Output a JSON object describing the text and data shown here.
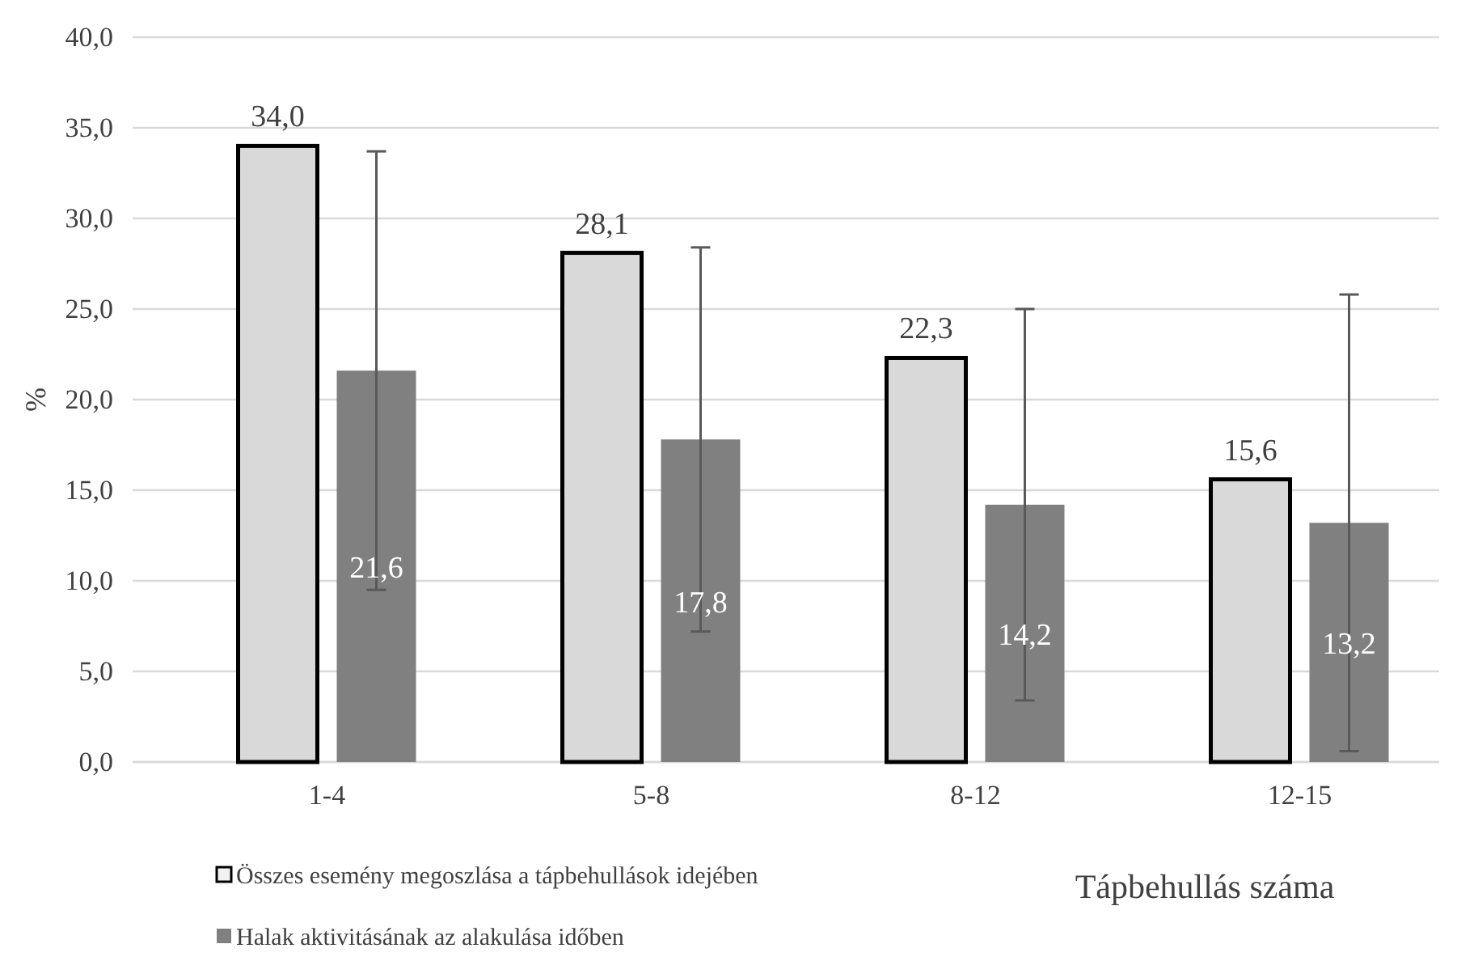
{
  "chart_data": {
    "type": "bar",
    "ylabel": "%",
    "xlabel": "Tápbehullás száma",
    "categories": [
      "1-4",
      "5-8",
      "8-12",
      "12-15"
    ],
    "series": [
      {
        "name": "Összes esemény megoszlása a tápbehullások idejében",
        "color": "#d9d9d9",
        "values": [
          34.0,
          28.1,
          22.3,
          15.6
        ],
        "value_labels": [
          "34,0",
          "28,1",
          "22,3",
          "15,6"
        ]
      },
      {
        "name": "Halak aktivitásának az alakulása időben",
        "color": "#808080",
        "values": [
          21.6,
          17.8,
          14.2,
          13.2
        ],
        "value_labels": [
          "21,6",
          "17,8",
          "14,2",
          "13,2"
        ],
        "errors": [
          12.1,
          10.6,
          10.8,
          12.6
        ]
      }
    ],
    "ylim": [
      0,
      40
    ],
    "yticks": [
      {
        "value": 0,
        "label": "0,0"
      },
      {
        "value": 5,
        "label": "5,0"
      },
      {
        "value": 10,
        "label": "10,0"
      },
      {
        "value": 15,
        "label": "15,0"
      },
      {
        "value": 20,
        "label": "20,0"
      },
      {
        "value": 25,
        "label": "25,0"
      },
      {
        "value": 30,
        "label": "30,0"
      },
      {
        "value": 35,
        "label": "35,0"
      },
      {
        "value": 40,
        "label": "40,0"
      }
    ],
    "grid": "y",
    "legend": "bottom left"
  }
}
